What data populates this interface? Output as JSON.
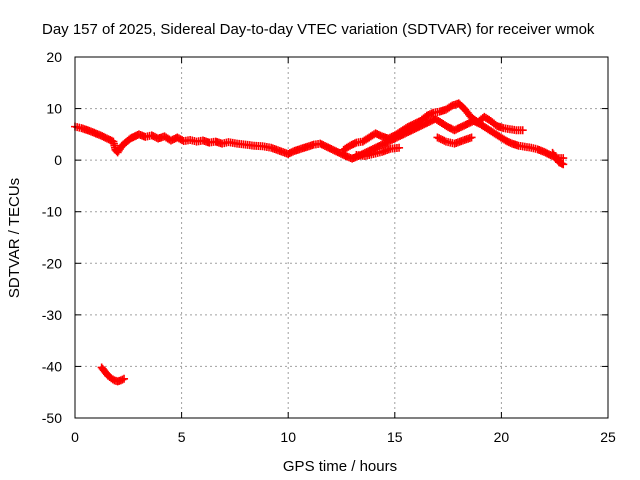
{
  "chart_data": {
    "type": "scatter",
    "title": "Day 157 of 2025, Sidereal Day-to-day VTEC variation (SDTVAR) for receiver wmok",
    "xlabel": "GPS time / hours",
    "ylabel": "SDTVAR / TECUs",
    "xlim": [
      0,
      25
    ],
    "ylim": [
      -50,
      20
    ],
    "xticks": [
      0,
      5,
      10,
      15,
      20,
      25
    ],
    "yticks": [
      -50,
      -40,
      -30,
      -20,
      -10,
      0,
      10,
      20
    ],
    "grid": true,
    "marker": "plus",
    "colors": {
      "series": "#ff0000",
      "grid": "#a0a0a0",
      "axis": "#000000"
    },
    "series": [
      {
        "name": "SDTVAR main trace",
        "points": [
          [
            0.0,
            6.5
          ],
          [
            0.3,
            6.2
          ],
          [
            0.6,
            5.8
          ],
          [
            0.9,
            5.3
          ],
          [
            1.2,
            4.8
          ],
          [
            1.5,
            4.2
          ],
          [
            1.8,
            3.6
          ],
          [
            1.9,
            2.0
          ],
          [
            2.0,
            1.5
          ],
          [
            2.2,
            2.8
          ],
          [
            2.4,
            3.5
          ],
          [
            2.6,
            4.2
          ],
          [
            2.8,
            4.6
          ],
          [
            3.0,
            5.0
          ],
          [
            3.3,
            4.5
          ],
          [
            3.6,
            4.8
          ],
          [
            3.9,
            4.2
          ],
          [
            4.2,
            4.6
          ],
          [
            4.5,
            3.8
          ],
          [
            4.8,
            4.4
          ],
          [
            5.1,
            3.7
          ],
          [
            5.4,
            3.9
          ],
          [
            5.7,
            3.6
          ],
          [
            6.0,
            3.8
          ],
          [
            6.3,
            3.4
          ],
          [
            6.6,
            3.6
          ],
          [
            6.9,
            3.2
          ],
          [
            7.2,
            3.5
          ],
          [
            7.6,
            3.2
          ],
          [
            8.0,
            3.0
          ],
          [
            8.4,
            2.8
          ],
          [
            8.8,
            2.7
          ],
          [
            9.2,
            2.4
          ],
          [
            9.6,
            1.8
          ],
          [
            10.0,
            1.2
          ],
          [
            10.3,
            1.8
          ],
          [
            10.6,
            2.2
          ],
          [
            10.9,
            2.6
          ],
          [
            11.2,
            3.0
          ],
          [
            11.5,
            3.2
          ],
          [
            11.8,
            2.6
          ],
          [
            12.1,
            2.0
          ],
          [
            12.4,
            1.4
          ],
          [
            12.7,
            0.8
          ],
          [
            13.0,
            0.3
          ],
          [
            13.3,
            0.8
          ],
          [
            13.6,
            1.4
          ],
          [
            13.9,
            2.0
          ],
          [
            14.2,
            2.6
          ],
          [
            14.5,
            3.2
          ],
          [
            14.8,
            3.8
          ],
          [
            15.1,
            4.4
          ],
          [
            15.4,
            5.0
          ],
          [
            15.7,
            5.6
          ],
          [
            16.0,
            6.2
          ],
          [
            16.3,
            6.8
          ],
          [
            16.6,
            7.4
          ],
          [
            16.9,
            8.0
          ],
          [
            17.2,
            7.2
          ],
          [
            17.5,
            6.4
          ],
          [
            17.8,
            5.8
          ],
          [
            18.1,
            6.4
          ],
          [
            18.4,
            7.0
          ],
          [
            18.7,
            7.6
          ],
          [
            19.0,
            7.0
          ],
          [
            19.3,
            6.2
          ],
          [
            19.6,
            5.4
          ],
          [
            19.9,
            4.6
          ],
          [
            20.2,
            3.8
          ],
          [
            20.5,
            3.2
          ],
          [
            20.8,
            2.8
          ],
          [
            21.1,
            2.6
          ],
          [
            21.4,
            2.4
          ],
          [
            21.7,
            2.1
          ],
          [
            22.0,
            1.6
          ],
          [
            22.3,
            1.0
          ],
          [
            22.6,
            0.4
          ],
          [
            22.9,
            0.4
          ]
        ]
      },
      {
        "name": "SDTVAR secondary arcs",
        "points": [
          [
            12.6,
            2.0
          ],
          [
            12.9,
            2.8
          ],
          [
            13.2,
            3.4
          ],
          [
            13.5,
            3.6
          ],
          [
            13.8,
            4.4
          ],
          [
            14.1,
            5.2
          ],
          [
            14.4,
            4.6
          ],
          [
            14.7,
            4.2
          ],
          [
            15.0,
            4.8
          ],
          [
            15.3,
            5.6
          ],
          [
            15.6,
            6.4
          ],
          [
            15.9,
            7.0
          ],
          [
            16.2,
            7.6
          ],
          [
            16.5,
            8.6
          ],
          [
            16.8,
            9.2
          ],
          [
            17.1,
            9.4
          ],
          [
            17.4,
            9.8
          ],
          [
            17.7,
            10.6
          ],
          [
            18.0,
            11.0
          ],
          [
            18.3,
            9.8
          ],
          [
            18.6,
            8.2
          ],
          [
            18.9,
            7.4
          ],
          [
            19.2,
            8.4
          ],
          [
            19.5,
            7.6
          ],
          [
            19.8,
            6.6
          ],
          [
            20.1,
            6.2
          ],
          [
            20.4,
            6.0
          ],
          [
            20.7,
            5.8
          ],
          [
            21.0,
            5.8
          ],
          [
            13.2,
            1.0
          ],
          [
            13.6,
            0.8
          ],
          [
            14.0,
            1.2
          ],
          [
            14.4,
            1.6
          ],
          [
            14.8,
            2.2
          ],
          [
            15.2,
            2.4
          ],
          [
            17.0,
            4.4
          ],
          [
            17.4,
            3.6
          ],
          [
            17.8,
            3.2
          ],
          [
            18.2,
            3.8
          ],
          [
            18.6,
            4.4
          ],
          [
            22.4,
            1.4
          ],
          [
            22.7,
            -0.4
          ],
          [
            22.9,
            -0.8
          ]
        ]
      },
      {
        "name": "SDTVAR outlier arc",
        "points": [
          [
            1.25,
            -40.2
          ],
          [
            1.4,
            -41.0
          ],
          [
            1.55,
            -41.8
          ],
          [
            1.7,
            -42.3
          ],
          [
            1.85,
            -42.7
          ],
          [
            2.0,
            -42.9
          ],
          [
            2.15,
            -42.7
          ],
          [
            2.3,
            -42.4
          ]
        ]
      }
    ]
  }
}
